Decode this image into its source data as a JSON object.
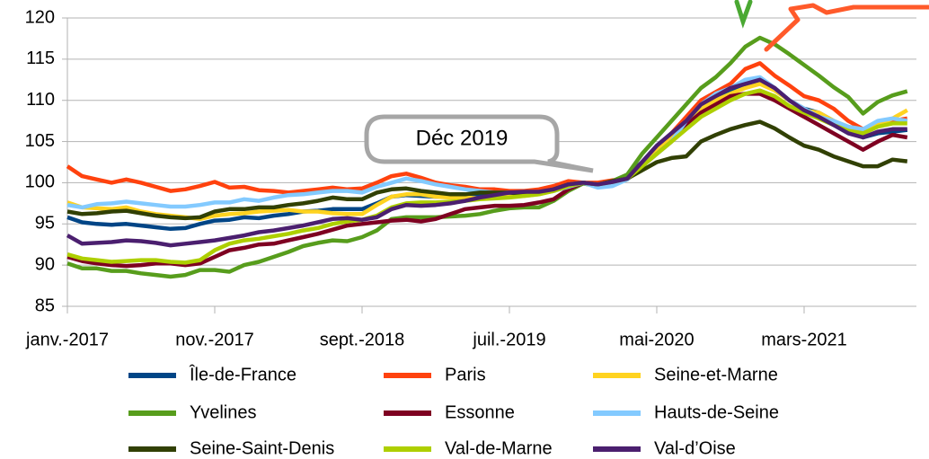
{
  "chart_data": {
    "type": "line",
    "annotations": [
      "Déc 2019"
    ],
    "categories": [
      "janv.-2017",
      null,
      null,
      null,
      null,
      null,
      null,
      null,
      null,
      null,
      "nov.-2017",
      null,
      null,
      null,
      null,
      null,
      null,
      null,
      null,
      null,
      "sept.-2018",
      null,
      null,
      null,
      null,
      null,
      null,
      null,
      null,
      null,
      "juil.-2019",
      null,
      null,
      null,
      null,
      null,
      null,
      null,
      null,
      null,
      "mai-2020",
      null,
      null,
      null,
      null,
      null,
      null,
      null,
      null,
      null,
      "mars-2021",
      null,
      null,
      null,
      null,
      null,
      null,
      null
    ],
    "ylim": [
      85,
      120
    ],
    "yticks": [
      85,
      90,
      95,
      100,
      105,
      110,
      115,
      120
    ],
    "grid": true,
    "legend": "bottom",
    "series": [
      {
        "name": "Île-de-France",
        "color": "#004586",
        "values": [
          95.8,
          95.2,
          95,
          94.9,
          95,
          94.8,
          94.6,
          94.4,
          94.5,
          95,
          95.4,
          95.5,
          95.8,
          95.7,
          96,
          96.2,
          96.5,
          96.6,
          96.8,
          96.8,
          96.8,
          97.5,
          98.3,
          98.5,
          98.4,
          98.3,
          98.3,
          98.4,
          98.5,
          98.6,
          98.6,
          98.6,
          98.7,
          99,
          99.6,
          100,
          99.8,
          100.2,
          100.8,
          102.5,
          104.5,
          106,
          107.5,
          109.5,
          110.5,
          111,
          111.8,
          112.4,
          111.5,
          110,
          109,
          108.5,
          107.5,
          106.5,
          105.5,
          106,
          106.2,
          106.4
        ]
      },
      {
        "name": "Paris",
        "color": "#ff420e",
        "values": [
          102,
          100.8,
          100.4,
          100,
          100.4,
          100,
          99.5,
          99,
          99.2,
          99.6,
          100.1,
          99.4,
          99.5,
          99.1,
          99,
          98.8,
          99,
          99.2,
          99.4,
          99.2,
          99.3,
          100,
          100.8,
          101.1,
          100.6,
          100,
          99.7,
          99.5,
          99.2,
          99.2,
          99,
          99,
          99.2,
          99.6,
          100.2,
          100,
          100,
          100.3,
          100.5,
          102,
          104,
          106,
          108,
          110,
          111,
          112,
          113.8,
          114.5,
          113,
          111.8,
          110.5,
          110,
          109,
          107.5,
          106.5,
          107,
          107.5,
          107.8
        ]
      },
      {
        "name": "Seine-et-Marne",
        "color": "#ffd320",
        "values": [
          97.6,
          97,
          96.9,
          96.8,
          97,
          96.5,
          96.2,
          96,
          95.8,
          95.6,
          96,
          96.2,
          96.3,
          96.5,
          96.6,
          96.7,
          96.5,
          96.5,
          96.3,
          96.2,
          96.2,
          97.3,
          98.3,
          98.6,
          98.6,
          98.3,
          98.2,
          98.2,
          98.1,
          98.2,
          98.3,
          98.4,
          98.6,
          99,
          99.8,
          100,
          99.7,
          100,
          100.5,
          102.2,
          104,
          105.5,
          107,
          109,
          110,
          110.8,
          111.5,
          112,
          111.2,
          110,
          108.8,
          108.5,
          107.5,
          106.8,
          106,
          107,
          107.8,
          108.8
        ]
      },
      {
        "name": "Yvelines",
        "color": "#579d1c",
        "values": [
          90.2,
          89.6,
          89.6,
          89.3,
          89.3,
          89,
          88.8,
          88.6,
          88.8,
          89.4,
          89.4,
          89.2,
          90,
          90.4,
          91,
          91.6,
          92.3,
          92.7,
          93,
          92.9,
          93.4,
          94.2,
          95.6,
          95.8,
          95.8,
          95.8,
          95.9,
          96,
          96.2,
          96.6,
          96.9,
          97,
          97,
          97.8,
          99,
          99.9,
          99.6,
          100.2,
          101,
          103.5,
          105.5,
          107.5,
          109.5,
          111.5,
          112.8,
          114.5,
          116.5,
          117.6,
          116.8,
          115.6,
          114.3,
          113,
          111.6,
          110.4,
          108.4,
          109.8,
          110.6,
          111.1
        ]
      },
      {
        "name": "Essonne",
        "color": "#7e0021",
        "values": [
          91,
          90.5,
          90.2,
          90,
          89.9,
          90,
          90.2,
          90.2,
          90,
          90.2,
          91,
          91.8,
          92.1,
          92.5,
          92.6,
          93,
          93.4,
          93.8,
          94.3,
          94.8,
          95,
          95.2,
          95.4,
          95.5,
          95.3,
          95.6,
          96.2,
          96.8,
          97,
          97.2,
          97.2,
          97.3,
          97.6,
          98,
          99.2,
          100,
          99.8,
          100,
          100.5,
          102,
          103.5,
          105,
          107,
          108.5,
          109.5,
          110.5,
          110.8,
          110.8,
          110,
          109,
          108,
          107,
          106,
          105,
          104,
          105,
          105.8,
          105.5
        ]
      },
      {
        "name": "Hauts-de-Seine",
        "color": "#83caff",
        "values": [
          97.3,
          97,
          97.4,
          97.5,
          97.7,
          97.5,
          97.3,
          97.1,
          97.1,
          97.3,
          97.6,
          97.6,
          98,
          97.8,
          98.2,
          98.5,
          98.6,
          98.8,
          99,
          99,
          98.8,
          99.5,
          100,
          100.5,
          100.2,
          99.8,
          99.5,
          99.2,
          99,
          98.8,
          98.8,
          98.8,
          98.8,
          99,
          99.5,
          100,
          99.4,
          99.6,
          100.4,
          102,
          103.5,
          105,
          107.5,
          109.5,
          110.8,
          111.5,
          112.5,
          112.8,
          111.5,
          110,
          109,
          108,
          107.5,
          106.8,
          106.5,
          107.5,
          107.8,
          107.5
        ]
      },
      {
        "name": "Seine-Saint-Denis",
        "color": "#314004",
        "values": [
          96.5,
          96.2,
          96.3,
          96.5,
          96.6,
          96.3,
          96,
          95.8,
          95.7,
          95.8,
          96.5,
          96.8,
          96.8,
          97,
          97,
          97.3,
          97.5,
          97.8,
          98.2,
          98,
          98,
          98.8,
          99.2,
          99.3,
          99,
          98.8,
          98.6,
          98.6,
          98.8,
          98.8,
          98.8,
          98.6,
          98.8,
          99.2,
          99.8,
          100,
          99.8,
          100.2,
          100.5,
          101.5,
          102.5,
          103,
          103.2,
          105,
          105.8,
          106.5,
          107,
          107.4,
          106.6,
          105.5,
          104.5,
          104,
          103.2,
          102.6,
          102,
          102,
          102.8,
          102.6
        ]
      },
      {
        "name": "Val-de-Marne",
        "color": "#aecf00",
        "values": [
          91.3,
          90.8,
          90.6,
          90.4,
          90.5,
          90.6,
          90.6,
          90.4,
          90.3,
          90.6,
          91.8,
          92.6,
          93,
          93.2,
          93.5,
          93.8,
          94.2,
          94.5,
          95,
          95.3,
          95.5,
          96,
          97,
          97.5,
          97.6,
          97.6,
          97.7,
          97.8,
          98,
          98.1,
          98.2,
          98.4,
          98.6,
          99,
          99.6,
          100,
          99.8,
          100.1,
          100.5,
          102,
          103.5,
          105,
          106.5,
          108,
          109,
          110,
          110.8,
          111.2,
          110.5,
          109.3,
          108.5,
          107.8,
          107,
          106.3,
          106,
          106.8,
          107.2,
          107.2
        ]
      },
      {
        "name": "Val-d’Oise",
        "color": "#4b1f6f",
        "values": [
          93.6,
          92.6,
          92.7,
          92.8,
          93,
          92.9,
          92.7,
          92.4,
          92.6,
          92.8,
          93,
          93.3,
          93.6,
          94,
          94.2,
          94.5,
          94.8,
          95.2,
          95.6,
          95.7,
          95.5,
          95.8,
          96.8,
          97.3,
          97.2,
          97.3,
          97.5,
          97.8,
          98.2,
          98.5,
          98.8,
          98.9,
          98.9,
          99.2,
          99.8,
          100,
          99.8,
          100.1,
          100.5,
          102.5,
          104.5,
          106,
          107.5,
          109.5,
          110.5,
          111.5,
          112,
          112.5,
          111.5,
          110,
          108.8,
          108,
          107,
          106,
          105.5,
          106.2,
          106.5,
          106.5
        ]
      }
    ]
  }
}
